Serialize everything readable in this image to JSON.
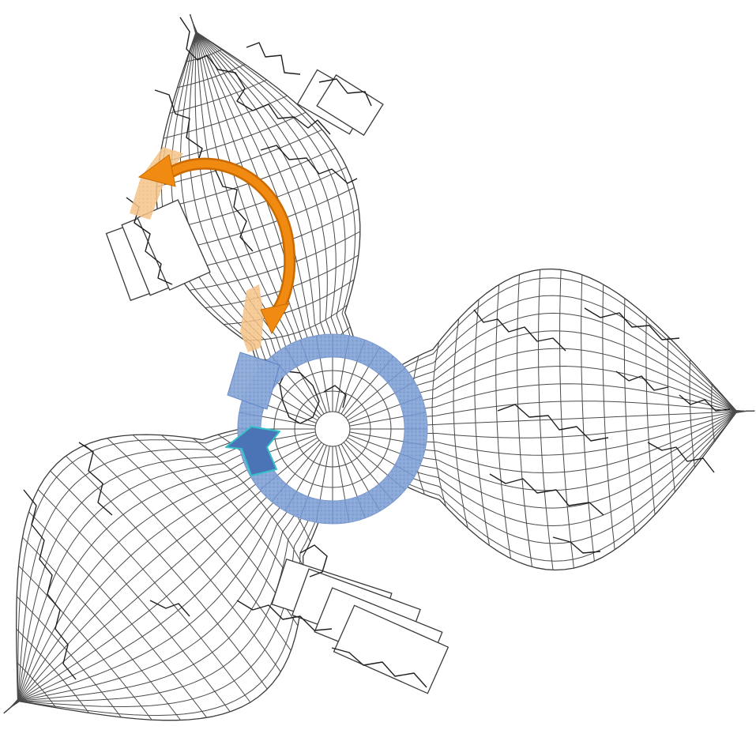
{
  "map": {
    "kind": "interrupted polar map projection with three petal-shaped lobes around a central polar disc",
    "colors": {
      "background": "#ffffff",
      "graticule": "#4a4a4a",
      "coastline": "#1e1e1e",
      "ring_fill": "#8aa8d8",
      "ring_dots": "#6f8fc4",
      "arrow_orange": "#f08a10",
      "arrow_orange_dark": "#c96a00",
      "band_orange": "#f4c488",
      "arrow_blue": "#4a74b6",
      "arrow_blue_edge": "#35c0c8",
      "patch_blue": "#5b82c4"
    },
    "icons": [
      "curved-orange-arrow-icon",
      "blue-arrow-icon"
    ]
  }
}
